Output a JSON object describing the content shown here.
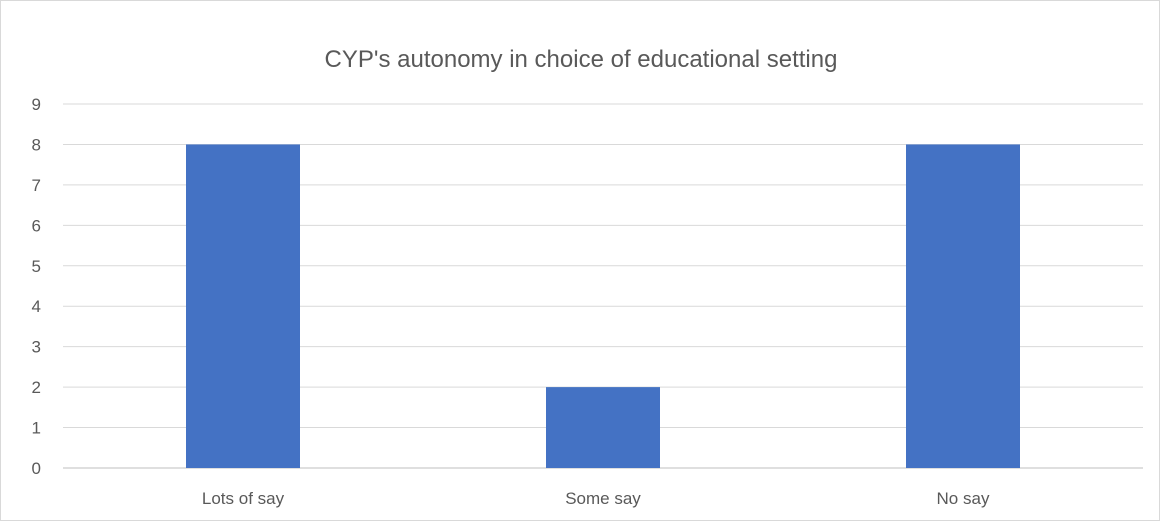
{
  "chart_data": {
    "type": "bar",
    "title": "CYP's autonomy in choice of educational setting",
    "xlabel": "",
    "ylabel": "",
    "categories": [
      "Lots of say",
      "Some say",
      "No say"
    ],
    "series": [
      {
        "values": [
          8,
          2,
          8
        ]
      }
    ],
    "ylim": [
      0,
      9
    ],
    "ytick_step": 1,
    "yticks": [
      "0",
      "1",
      "2",
      "3",
      "4",
      "5",
      "6",
      "7",
      "8",
      "9"
    ],
    "grid": "horizontal",
    "legend": "none",
    "colors": {
      "bar": "#4472C4",
      "grid": "#d9d9d9",
      "axis": "#bfbfbf",
      "text": "#595959"
    }
  }
}
